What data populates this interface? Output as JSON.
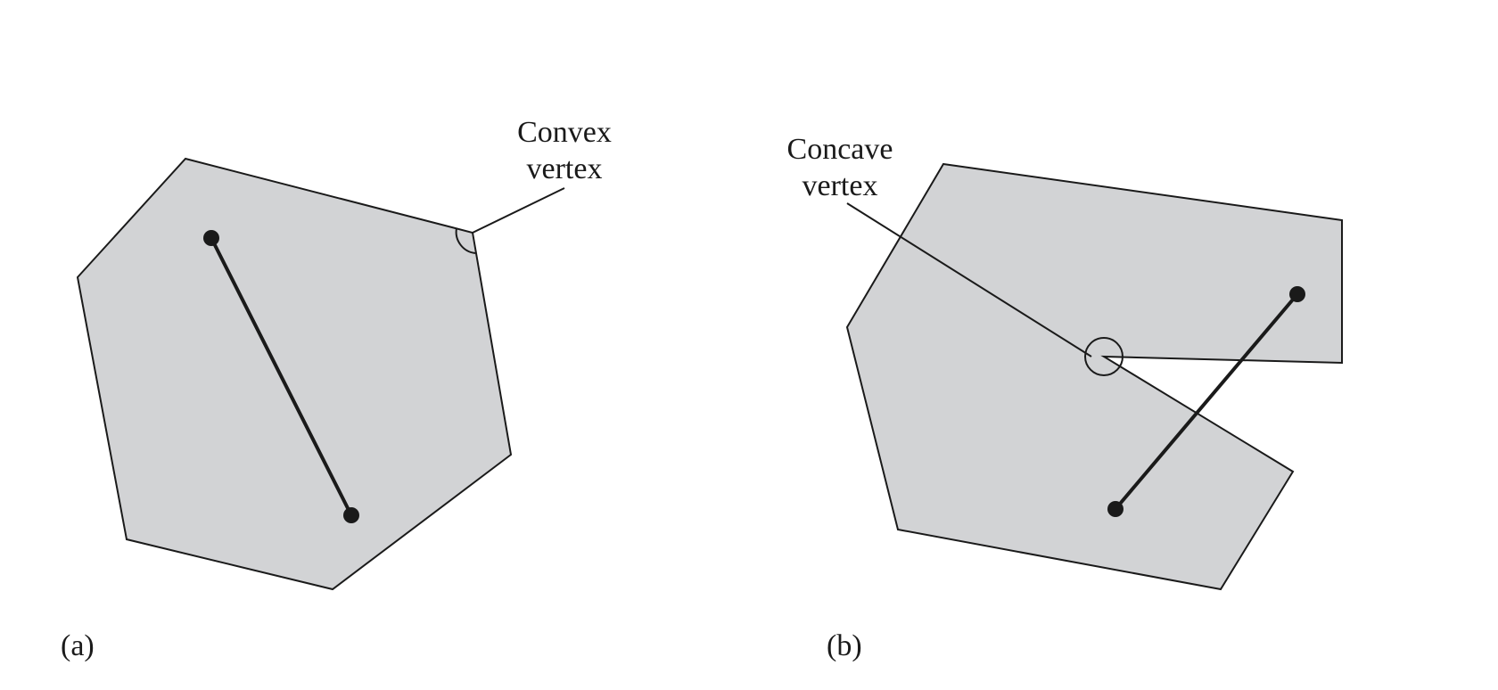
{
  "figure": {
    "panel_a": {
      "label": "(a)",
      "callout_line1": "Convex",
      "callout_line2": "vertex"
    },
    "panel_b": {
      "label": "(b)",
      "callout_line1": "Concave",
      "callout_line2": "vertex"
    },
    "colors": {
      "fill": "#d2d3d5",
      "stroke": "#1a1a1a"
    }
  }
}
